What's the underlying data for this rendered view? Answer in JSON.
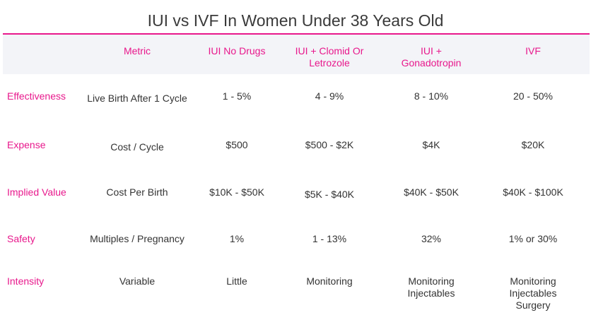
{
  "chart_data": {
    "type": "table",
    "title": "IUI vs IVF In Women Under 38 Years Old",
    "columns": [
      "Metric",
      "IUI No Drugs",
      "IUI + Clomid Or Letrozole",
      "IUI + Gonadotropin",
      "IVF"
    ],
    "columns_lines": [
      [
        "Metric"
      ],
      [
        "IUI No Drugs"
      ],
      [
        "IUI + Clomid Or",
        "Letrozole"
      ],
      [
        "IUI +",
        "Gonadotropin"
      ],
      [
        "IVF"
      ]
    ],
    "rows": [
      {
        "label": "Effectiveness",
        "cells": [
          [
            "Live Birth After 1 Cycle"
          ],
          [
            "1 - 5%"
          ],
          [
            "4 - 9%"
          ],
          [
            "8 - 10%"
          ],
          [
            "20 - 50%"
          ]
        ]
      },
      {
        "label": "Expense",
        "cells": [
          [
            "Cost / Cycle"
          ],
          [
            "$500"
          ],
          [
            "$500 - $2K"
          ],
          [
            "$4K"
          ],
          [
            "$20K"
          ]
        ]
      },
      {
        "label": "Implied Value",
        "cells": [
          [
            "Cost Per Birth"
          ],
          [
            "$10K - $50K"
          ],
          [
            "$5K - $40K"
          ],
          [
            "$40K - $50K"
          ],
          [
            "$40K - $100K"
          ]
        ]
      },
      {
        "label": "Safety",
        "cells": [
          [
            "Multiples / Pregnancy"
          ],
          [
            "1%"
          ],
          [
            "1 - 13%"
          ],
          [
            "32%"
          ],
          [
            "1% or 30%"
          ]
        ]
      },
      {
        "label": "Intensity",
        "cells": [
          [
            "Variable"
          ],
          [
            "Little"
          ],
          [
            "Monitoring"
          ],
          [
            "Monitoring",
            "Injectables"
          ],
          [
            "Monitoring",
            "Injectables",
            "Surgery"
          ]
        ]
      }
    ]
  },
  "colors": {
    "accent": "#e8188c",
    "header_band": "#f3f4f8",
    "text": "#333333"
  }
}
